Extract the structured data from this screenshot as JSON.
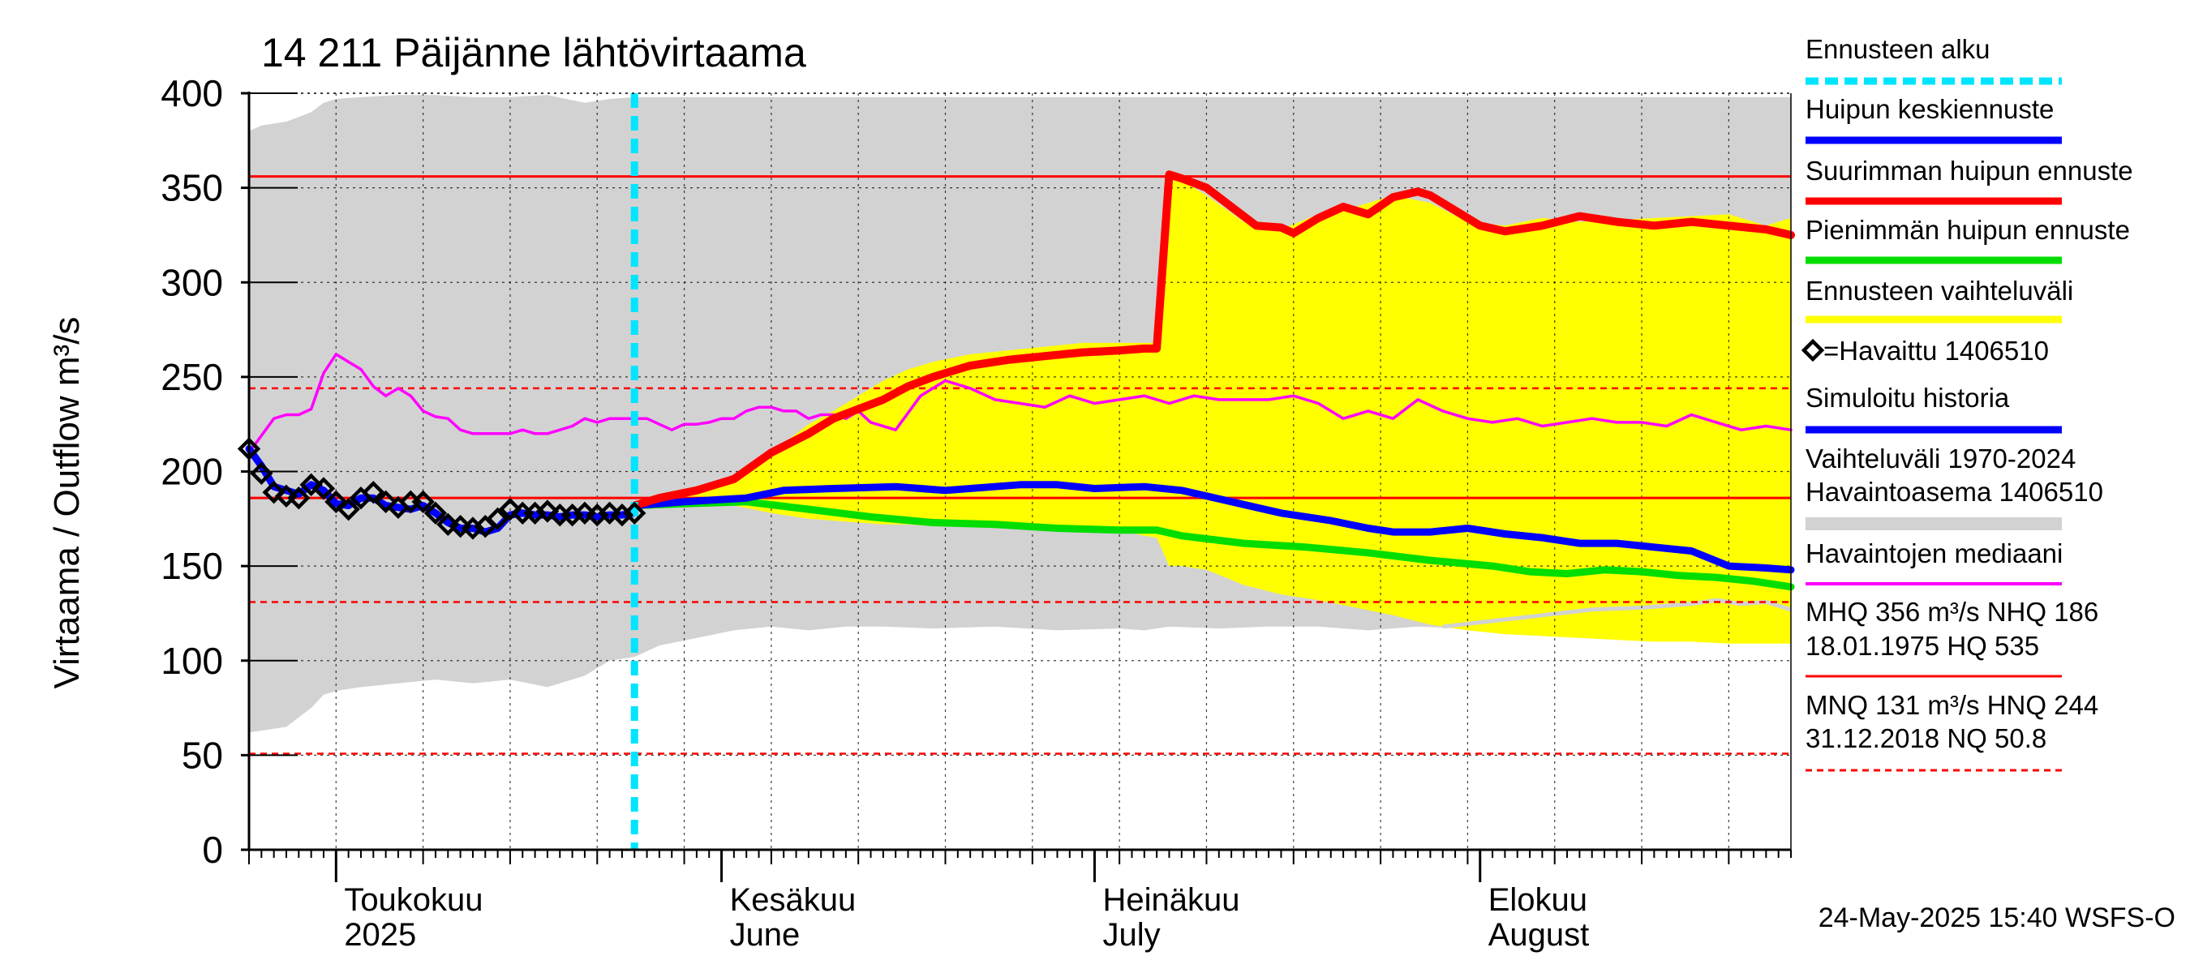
{
  "chart_data": {
    "type": "line",
    "title": "14 211 Päijänne lähtövirtaama",
    "ylabel": "Virtaama / Outflow    m³/s",
    "ylim": [
      0,
      400
    ],
    "yticks": [
      "0",
      "50",
      "100",
      "150",
      "200",
      "250",
      "300",
      "350",
      "400"
    ],
    "x_range_days": [
      0,
      124
    ],
    "x_start_date": "2025-04-24",
    "forecast_start_day": 31,
    "month_labels": [
      {
        "fi": "Toukokuu",
        "en": "2025",
        "day": 7
      },
      {
        "fi": "Kesäkuu",
        "en": "June",
        "day": 38
      },
      {
        "fi": "Heinäkuu",
        "en": "July",
        "day": 68
      },
      {
        "fi": "Elokuu",
        "en": "August",
        "day": 99
      }
    ],
    "reference_lines": {
      "MHQ": 356,
      "NHQ": 186,
      "HNQ": 244,
      "MNQ": 131,
      "NQ": 50.8
    },
    "series": [
      {
        "name": "Vaihteluväli 1970-2024 Havaintoasema 1406510",
        "kind": "band",
        "color": "#d2d2d2",
        "x": [
          0,
          1,
          3,
          5,
          6,
          7,
          9,
          12,
          15,
          18,
          21,
          24,
          27,
          29,
          31,
          33,
          36,
          39,
          42,
          45,
          48,
          51,
          55,
          60,
          65,
          70,
          72,
          74,
          78,
          82,
          86,
          90,
          94,
          98,
          102,
          106,
          110,
          114,
          118,
          122,
          124
        ],
        "upper": [
          380,
          383,
          385,
          390,
          395,
          397,
          398,
          399,
          399,
          398,
          398,
          399,
          395,
          397,
          398,
          398,
          398,
          398,
          398,
          398,
          398,
          398,
          398,
          398,
          398,
          398,
          398,
          398,
          398,
          398,
          398,
          398,
          398,
          398,
          398,
          398,
          398,
          398,
          398,
          398,
          398
        ],
        "lower": [
          62,
          63,
          65,
          75,
          82,
          84,
          86,
          88,
          90,
          88,
          90,
          86,
          92,
          100,
          102,
          108,
          112,
          116,
          118,
          116,
          118,
          118,
          117,
          118,
          116,
          117,
          116,
          118,
          117,
          118,
          118,
          116,
          118,
          117,
          116,
          118,
          117,
          118,
          116,
          118,
          117
        ]
      },
      {
        "name": "Ennusteen vaihteluväli",
        "kind": "band",
        "color": "#ffff00",
        "x": [
          31,
          33,
          36,
          39,
          42,
          45,
          47,
          49,
          51,
          53,
          55,
          58,
          61,
          64,
          67,
          70,
          72,
          73,
          74,
          75,
          77,
          80,
          83,
          86,
          89,
          92,
          95,
          98,
          101,
          104,
          107,
          110,
          113,
          116,
          119,
          122,
          124
        ],
        "upper": [
          184,
          186,
          190,
          195,
          210,
          225,
          232,
          240,
          248,
          254,
          258,
          262,
          264,
          266,
          268,
          268,
          268,
          268,
          358,
          354,
          346,
          332,
          328,
          336,
          340,
          346,
          342,
          332,
          330,
          334,
          332,
          333,
          334,
          335,
          336,
          330,
          334
        ],
        "lower": [
          184,
          186,
          185,
          182,
          178,
          175,
          174,
          173,
          172,
          172,
          171,
          171,
          170,
          170,
          169,
          169,
          166,
          165,
          150,
          150,
          148,
          140,
          135,
          132,
          128,
          124,
          119,
          116,
          114,
          113,
          112,
          111,
          110,
          110,
          109,
          109,
          109
        ]
      },
      {
        "name": "Havaintojen mediaani",
        "kind": "line",
        "color": "#ff00ff",
        "x": [
          0,
          2,
          3,
          4,
          5,
          6,
          7,
          8,
          9,
          10,
          11,
          12,
          13,
          14,
          15,
          16,
          17,
          18,
          19,
          20,
          21,
          22,
          23,
          24,
          25,
          26,
          27,
          28,
          29,
          30,
          31,
          32,
          33,
          34,
          35,
          36,
          37,
          38,
          39,
          40,
          41,
          42,
          43,
          44,
          45,
          46,
          47,
          48,
          49,
          50,
          52,
          54,
          56,
          58,
          60,
          62,
          64,
          66,
          68,
          70,
          72,
          74,
          76,
          78,
          80,
          82,
          84,
          86,
          88,
          90,
          92,
          94,
          96,
          98,
          100,
          102,
          104,
          106,
          108,
          110,
          112,
          114,
          116,
          118,
          120,
          122,
          124
        ],
        "y": [
          210,
          228,
          230,
          230,
          233,
          252,
          262,
          258,
          254,
          245,
          240,
          244,
          240,
          232,
          229,
          228,
          222,
          220,
          220,
          220,
          220,
          222,
          220,
          220,
          222,
          224,
          228,
          226,
          228,
          228,
          228,
          228,
          225,
          222,
          225,
          225,
          226,
          228,
          228,
          232,
          234,
          234,
          232,
          232,
          228,
          230,
          230,
          228,
          232,
          226,
          222,
          240,
          248,
          244,
          238,
          236,
          234,
          240,
          236,
          238,
          240,
          236,
          240,
          238,
          238,
          238,
          240,
          236,
          228,
          232,
          228,
          238,
          232,
          228,
          226,
          228,
          224,
          226,
          228,
          226,
          226,
          224,
          230,
          226,
          222,
          224,
          222
        ]
      },
      {
        "name": "Suurimman huipun ennuste",
        "kind": "line",
        "color": "#ff0000",
        "x": [
          31,
          33,
          36,
          39,
          42,
          45,
          47,
          49,
          51,
          53,
          55,
          58,
          61,
          64,
          67,
          70,
          72,
          73,
          74,
          75,
          77,
          79,
          81,
          83,
          84,
          86,
          88,
          90,
          92,
          94,
          95,
          97,
          99,
          101,
          104,
          107,
          110,
          113,
          116,
          119,
          122,
          124
        ],
        "y": [
          182,
          186,
          190,
          196,
          210,
          220,
          228,
          233,
          238,
          245,
          250,
          256,
          259,
          261,
          263,
          264,
          265,
          265,
          357,
          355,
          350,
          340,
          330,
          329,
          326,
          334,
          340,
          336,
          345,
          348,
          346,
          338,
          330,
          327,
          330,
          335,
          332,
          330,
          332,
          330,
          328,
          325
        ]
      },
      {
        "name": "Huipun keskiennuste",
        "kind": "line",
        "color": "#0000ff",
        "x": [
          31,
          35,
          40,
          43,
          47,
          52,
          56,
          62,
          65,
          68,
          72,
          75,
          79,
          83,
          87,
          90,
          92,
          95,
          98,
          101,
          104,
          107,
          110,
          113,
          116,
          119,
          122,
          124
        ],
        "y": [
          182,
          184,
          186,
          190,
          191,
          192,
          190,
          193,
          193,
          191,
          192,
          190,
          184,
          178,
          174,
          170,
          168,
          168,
          170,
          167,
          165,
          162,
          162,
          160,
          158,
          150,
          149,
          148
        ]
      },
      {
        "name": "Pienimmän huipun ennuste",
        "kind": "line",
        "color": "#00dd00",
        "x": [
          31,
          35,
          40,
          45,
          50,
          55,
          60,
          65,
          70,
          73,
          75,
          80,
          85,
          90,
          95,
          100,
          103,
          106,
          109,
          112,
          115,
          118,
          121,
          124
        ],
        "y": [
          182,
          183,
          184,
          180,
          176,
          173,
          172,
          170,
          169,
          169,
          166,
          162,
          160,
          157,
          153,
          150,
          147,
          146,
          148,
          147,
          145,
          144,
          142,
          139
        ]
      },
      {
        "name": "Simuloitu historia",
        "kind": "line",
        "color": "#0000ff",
        "x": [
          0,
          1,
          2,
          3,
          4,
          5,
          6,
          7,
          8,
          9,
          10,
          11,
          12,
          13,
          14,
          15,
          16,
          17,
          18,
          19,
          20,
          21,
          22,
          23,
          24,
          25,
          26,
          27,
          28,
          29,
          30,
          31
        ],
        "y": [
          212,
          203,
          192,
          190,
          188,
          193,
          190,
          183,
          182,
          186,
          186,
          182,
          181,
          180,
          182,
          178,
          173,
          170,
          170,
          168,
          170,
          177,
          178,
          177,
          177,
          176,
          177,
          177,
          176,
          177,
          177,
          178
        ]
      },
      {
        "name": "Havaittu 1406510",
        "kind": "markers",
        "color": "#000000",
        "x": [
          0,
          1,
          2,
          3,
          4,
          5,
          6,
          7,
          8,
          9,
          10,
          11,
          12,
          13,
          14,
          15,
          16,
          17,
          18,
          19,
          20,
          21,
          22,
          23,
          24,
          25,
          26,
          27,
          28,
          29,
          30,
          31
        ],
        "y": [
          212,
          199,
          189,
          187,
          186,
          193,
          191,
          184,
          180,
          186,
          189,
          184,
          181,
          184,
          184,
          178,
          172,
          171,
          170,
          171,
          175,
          180,
          178,
          178,
          179,
          177,
          177,
          178,
          177,
          178,
          177,
          178
        ]
      }
    ]
  },
  "legend": {
    "items": [
      {
        "label": "Ennusteen alku",
        "color": "#00e5ff",
        "style": "dashed"
      },
      {
        "label": "Huipun keskiennuste",
        "color": "#0000ff",
        "style": "solid"
      },
      {
        "label": "Suurimman huipun ennuste",
        "color": "#ff0000",
        "style": "solid"
      },
      {
        "label": "Pienimmän huipun ennuste",
        "color": "#00dd00",
        "style": "solid"
      },
      {
        "label": "Ennusteen vaihteluväli",
        "color": "#ffff00",
        "style": "solid"
      },
      {
        "label": "=Havaittu 1406510",
        "color": "#000000",
        "style": "marker"
      },
      {
        "label": "Simuloitu historia",
        "color": "#0000ff",
        "style": "solid"
      },
      {
        "label": "Vaihteluväli 1970-2024",
        "label2": " Havaintoasema 1406510",
        "color": "#d2d2d2",
        "style": "solid"
      },
      {
        "label": "Havaintojen mediaani",
        "color": "#ff00ff",
        "style": "solid"
      },
      {
        "label": "MHQ  356 m³/s NHQ  186",
        "label2": "18.01.1975 HQ  535",
        "color": "#ff0000",
        "style": "solid"
      },
      {
        "label": "MNQ  131 m³/s HNQ  244",
        "label2": "31.12.2018 NQ 50.8",
        "color": "#ff0000",
        "style": "dashed"
      }
    ]
  },
  "footer": {
    "timestamp": "24-May-2025 15:40 WSFS-O"
  }
}
